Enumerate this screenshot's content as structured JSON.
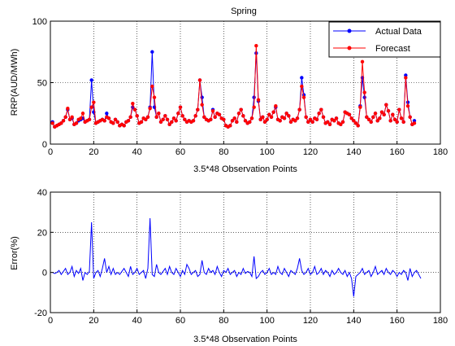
{
  "figure_title": "Spring",
  "chart_data": [
    {
      "type": "line",
      "title": "Spring",
      "xlabel": "3.5*48 Observation Points",
      "ylabel": "RRP(AUD/MWh)",
      "xlim": [
        0,
        180
      ],
      "ylim": [
        0,
        100
      ],
      "xticks": [
        0,
        20,
        40,
        60,
        80,
        100,
        120,
        140,
        160,
        180
      ],
      "yticks": [
        0,
        50,
        100
      ],
      "grid": true,
      "legend_position": "top-right",
      "series": [
        {
          "name": "Actual Data",
          "color": "#0000ff",
          "marker": "dot",
          "values": [
            18,
            14,
            15,
            16,
            17,
            19,
            22,
            28,
            20,
            21,
            16,
            17,
            19,
            20,
            21,
            18,
            19,
            20,
            52,
            26,
            17,
            18,
            19,
            20,
            19,
            25,
            21,
            18,
            17,
            20,
            18,
            15,
            16,
            15,
            18,
            19,
            22,
            30,
            28,
            23,
            17,
            18,
            21,
            20,
            22,
            30,
            75,
            30,
            22,
            25,
            18,
            20,
            23,
            20,
            16,
            18,
            21,
            19,
            25,
            30,
            23,
            20,
            18,
            19,
            18,
            19,
            23,
            28,
            52,
            38,
            22,
            20,
            19,
            20,
            28,
            22,
            25,
            24,
            21,
            20,
            15,
            14,
            15,
            19,
            21,
            18,
            25,
            28,
            23,
            19,
            17,
            18,
            21,
            38,
            74,
            35,
            20,
            22,
            18,
            20,
            24,
            22,
            26,
            30,
            20,
            19,
            22,
            21,
            25,
            23,
            18,
            20,
            19,
            21,
            28,
            54,
            40,
            22,
            18,
            20,
            18,
            21,
            20,
            25,
            28,
            22,
            17,
            18,
            16,
            20,
            19,
            21,
            17,
            16,
            18,
            26,
            25,
            24,
            21,
            19,
            17,
            15,
            31,
            54,
            38,
            22,
            20,
            18,
            22,
            25,
            19,
            21,
            26,
            24,
            32,
            27,
            19,
            24,
            20,
            18,
            28,
            21,
            18,
            56,
            34,
            22,
            16,
            19
          ]
        },
        {
          "name": "Forecast",
          "color": "#ff0000",
          "marker": "dot",
          "values": [
            17,
            14,
            15,
            16,
            17,
            19,
            22,
            29,
            20,
            22,
            16,
            17,
            20,
            21,
            25,
            18,
            19,
            20,
            30,
            34,
            17,
            18,
            19,
            20,
            19,
            22,
            21,
            18,
            17,
            20,
            18,
            15,
            16,
            15,
            18,
            19,
            22,
            33,
            28,
            23,
            17,
            18,
            21,
            20,
            22,
            29,
            47,
            38,
            22,
            25,
            18,
            20,
            23,
            20,
            16,
            18,
            21,
            19,
            25,
            30,
            23,
            20,
            18,
            19,
            18,
            19,
            23,
            28,
            52,
            32,
            22,
            20,
            19,
            20,
            27,
            22,
            25,
            24,
            21,
            20,
            15,
            14,
            15,
            19,
            21,
            18,
            25,
            28,
            23,
            19,
            17,
            18,
            21,
            30,
            80,
            36,
            20,
            22,
            18,
            20,
            24,
            22,
            26,
            31,
            20,
            19,
            22,
            21,
            25,
            23,
            18,
            20,
            19,
            21,
            28,
            47,
            38,
            22,
            18,
            20,
            18,
            21,
            20,
            25,
            28,
            22,
            17,
            18,
            16,
            20,
            19,
            21,
            17,
            16,
            18,
            26,
            25,
            24,
            21,
            19,
            17,
            15,
            30,
            67,
            42,
            22,
            20,
            18,
            22,
            25,
            19,
            21,
            26,
            24,
            32,
            27,
            19,
            24,
            20,
            18,
            28,
            21,
            18,
            54,
            31,
            22,
            16,
            17
          ]
        }
      ]
    },
    {
      "type": "line",
      "title": "",
      "xlabel": "3.5*48 Observation Points",
      "ylabel": "Error(%)",
      "xlim": [
        0,
        180
      ],
      "ylim": [
        -20,
        40
      ],
      "xticks": [
        0,
        20,
        40,
        60,
        80,
        100,
        120,
        140,
        160,
        180
      ],
      "yticks": [
        -20,
        0,
        20,
        40
      ],
      "grid": true,
      "series": [
        {
          "color": "#0000ff",
          "values": [
            0,
            -0.5,
            0,
            1,
            -1,
            0.5,
            2,
            -1,
            0,
            3,
            -2,
            1,
            -0.5,
            2,
            -4,
            0,
            -1,
            0.5,
            25,
            -3,
            0,
            1,
            -2,
            2,
            7,
            0,
            3,
            -1,
            2,
            -1,
            0,
            -1,
            0.5,
            2,
            0,
            -2,
            3,
            -1,
            0,
            2,
            -1,
            0,
            1,
            -3,
            2,
            27,
            -1,
            -2,
            4,
            0,
            -1,
            0.5,
            2,
            -1,
            3,
            0,
            -1,
            2,
            0,
            -2,
            1,
            -1,
            4,
            2,
            -1,
            0,
            1,
            -2,
            -1,
            6,
            0,
            -1,
            2,
            0,
            1,
            -1,
            3,
            0,
            -2,
            1,
            0,
            2,
            -1,
            0,
            1,
            -2,
            0,
            -1,
            2,
            -0.5,
            0.5,
            0,
            -2,
            8,
            -3,
            -2,
            0,
            1,
            -1,
            0,
            2,
            -1,
            0,
            -1,
            3,
            0,
            -1,
            2,
            0,
            -2,
            1,
            0,
            -1,
            2,
            7,
            1,
            -1,
            0,
            2,
            -1,
            0,
            3,
            -1,
            0,
            2,
            -1,
            1,
            0,
            -2,
            1,
            -1,
            0,
            2,
            0,
            -1,
            1,
            -2,
            0,
            -3,
            -12,
            -2,
            -1,
            0,
            2,
            -1,
            0,
            1,
            -2,
            0,
            3,
            -1,
            0,
            1,
            -1,
            2,
            0,
            -1,
            1,
            0,
            -2,
            0,
            -1,
            1,
            0,
            -4,
            2,
            -2,
            0,
            1,
            -1,
            -3
          ]
        }
      ]
    }
  ]
}
